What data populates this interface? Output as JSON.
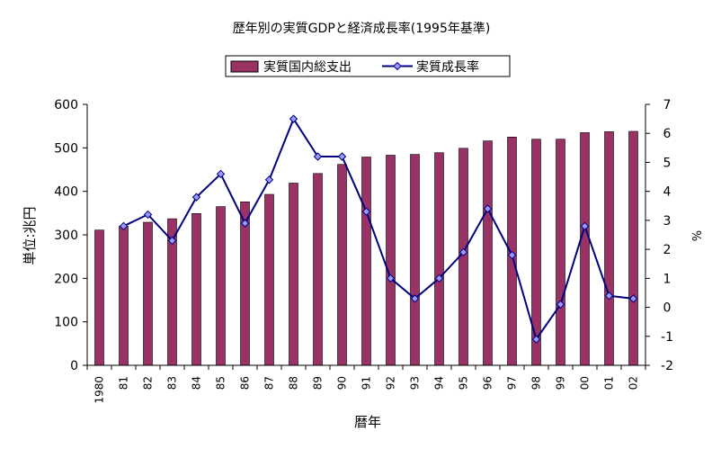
{
  "chart_data": {
    "type": "bar+line",
    "title": "歴年別の実質GDPと経済成長率(1995年基準)",
    "xlabel": "暦年",
    "ylabel_left": "単位:兆円",
    "ylabel_right": "%",
    "categories": [
      "1980",
      "81",
      "82",
      "83",
      "84",
      "85",
      "86",
      "87",
      "88",
      "89",
      "90",
      "91",
      "92",
      "93",
      "94",
      "95",
      "96",
      "97",
      "98",
      "99",
      "00",
      "01",
      "02"
    ],
    "y_left": {
      "lim": [
        0,
        600
      ],
      "ticks": [
        0,
        100,
        200,
        300,
        400,
        500,
        600
      ]
    },
    "y_right": {
      "lim": [
        -2,
        7
      ],
      "ticks": [
        -2,
        -1,
        0,
        1,
        2,
        3,
        4,
        5,
        6,
        7
      ]
    },
    "grid": false,
    "legend_position": "top",
    "series": [
      {
        "name": "実質国内総支出",
        "kind": "bar",
        "axis": "left",
        "color": "#993366",
        "values": [
          311,
          320,
          329,
          337,
          349,
          365,
          376,
          393,
          419,
          441,
          462,
          479,
          483,
          485,
          489,
          499,
          516,
          525,
          520,
          520,
          535,
          537,
          538
        ]
      },
      {
        "name": "実質成長率",
        "kind": "line",
        "axis": "right",
        "color": "#000080",
        "marker_color": "#9999ff",
        "values": [
          null,
          2.8,
          3.2,
          2.3,
          3.8,
          4.6,
          2.9,
          4.4,
          6.5,
          5.2,
          5.2,
          3.3,
          1.0,
          0.3,
          1.0,
          1.9,
          3.4,
          1.8,
          -1.1,
          0.1,
          2.8,
          0.4,
          0.3
        ]
      }
    ]
  }
}
